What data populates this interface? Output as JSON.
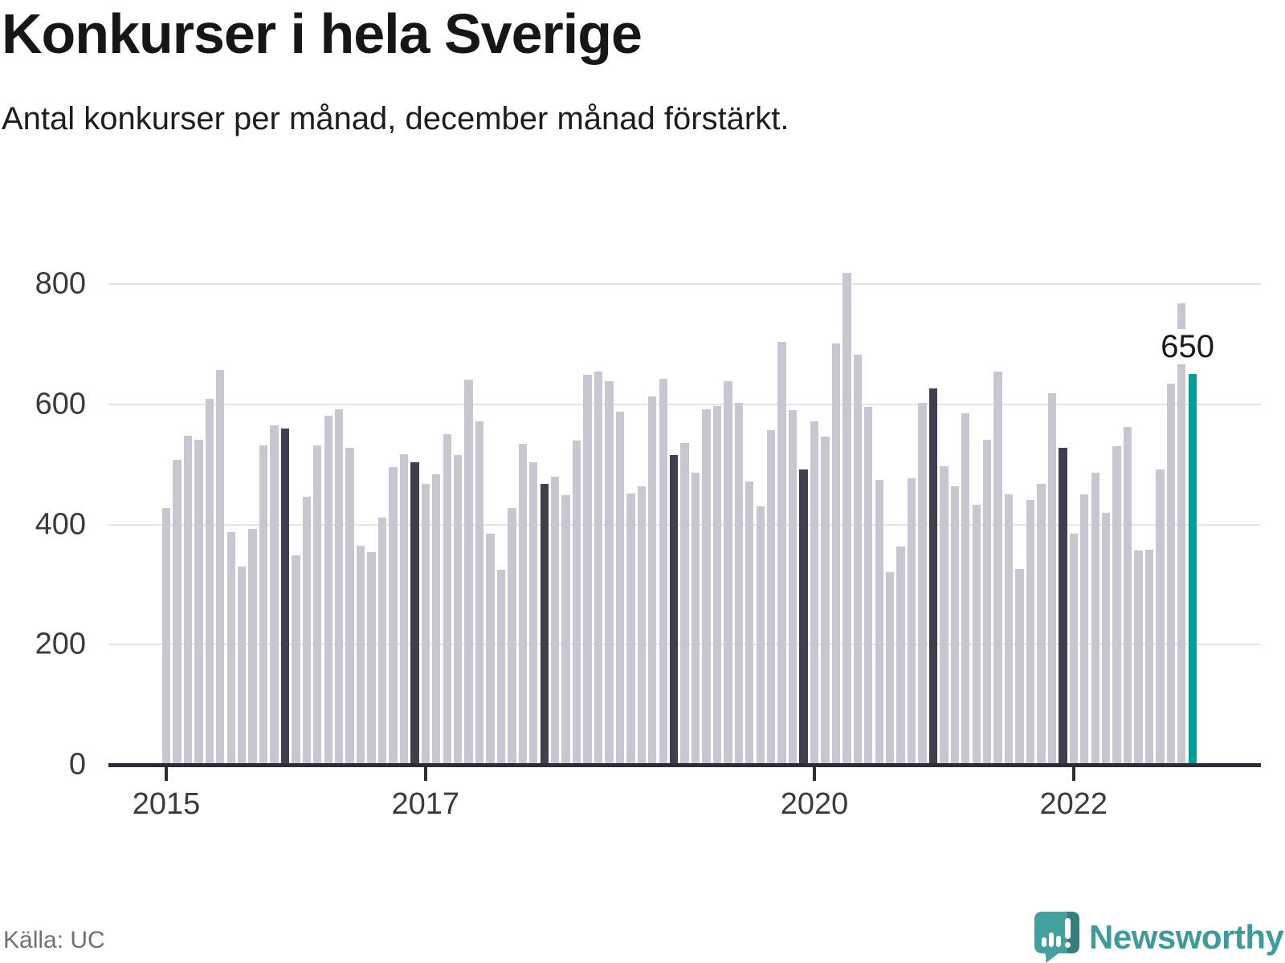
{
  "title": "Konkurser i hela Sverige",
  "subtitle": "Antal konkurser per månad, december månad förstärkt.",
  "source": "Källa: UC",
  "branding": {
    "name": "Newsworthy"
  },
  "annotation": {
    "label": "650"
  },
  "chart_data": {
    "type": "bar",
    "title": "Konkurser i hela Sverige",
    "subtitle": "Antal konkurser per månad, december månad förstärkt.",
    "x_start": "2015-01",
    "frequency": "monthly",
    "values": [
      427,
      507,
      548,
      541,
      609,
      657,
      387,
      330,
      392,
      531,
      565,
      560,
      348,
      446,
      532,
      581,
      591,
      528,
      365,
      354,
      411,
      495,
      517,
      503,
      468,
      484,
      550,
      516,
      641,
      572,
      385,
      324,
      427,
      534,
      503,
      467,
      480,
      449,
      540,
      649,
      654,
      638,
      587,
      451,
      463,
      613,
      643,
      516,
      536,
      486,
      591,
      597,
      638,
      603,
      472,
      430,
      557,
      704,
      590,
      492,
      571,
      546,
      701,
      819,
      682,
      596,
      474,
      320,
      363,
      477,
      603,
      627,
      497,
      463,
      585,
      433,
      541,
      655,
      450,
      326,
      441,
      468,
      618,
      528,
      385,
      450,
      486,
      419,
      530,
      562,
      357,
      358,
      491,
      635,
      768,
      650
    ],
    "yticks": [
      0,
      200,
      400,
      600,
      800
    ],
    "ylim": [
      0,
      850
    ],
    "xticks": [
      {
        "label": "2015",
        "month_index": 0
      },
      {
        "label": "2017",
        "month_index": 24
      },
      {
        "label": "2020",
        "month_index": 60
      },
      {
        "label": "2022",
        "month_index": 84
      }
    ],
    "colors": {
      "default": "#c8c6d1",
      "december": "#403e4f",
      "highlight": "#00a099",
      "axis": "#2e2d35",
      "grid": "#e4e3e7"
    },
    "december_emphasis": true,
    "highlight": {
      "month_index": 95,
      "value": 650,
      "label": "650"
    },
    "legend": "off",
    "grid": "on"
  }
}
